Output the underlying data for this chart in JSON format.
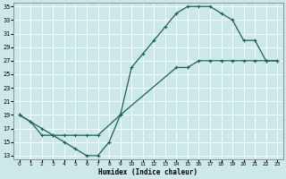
{
  "xlabel": "Humidex (Indice chaleur)",
  "bg_color": "#cce8e8",
  "grid_color": "#ffffff",
  "line_color": "#1a6060",
  "curve1_x": [
    0,
    1,
    2,
    3,
    4,
    5,
    6,
    7,
    8,
    9,
    10,
    11,
    12,
    13,
    14,
    15,
    16,
    17,
    18,
    19,
    20,
    21,
    22,
    23
  ],
  "curve1_y": [
    19,
    18,
    16,
    16,
    15,
    14,
    13,
    13,
    15,
    19,
    26,
    28,
    30,
    32,
    34,
    35,
    35,
    35,
    34,
    33,
    30,
    30,
    27,
    27
  ],
  "curve2_x": [
    0,
    2,
    3,
    4,
    5,
    6,
    7,
    9,
    14,
    15,
    16,
    17,
    18,
    19,
    20,
    21,
    22,
    23
  ],
  "curve2_y": [
    19,
    17,
    16,
    16,
    16,
    16,
    16,
    19,
    26,
    26,
    27,
    27,
    27,
    27,
    27,
    27,
    27,
    27
  ],
  "xmin": 0,
  "xmax": 23,
  "ymin": 13,
  "ymax": 35,
  "yticks": [
    13,
    15,
    17,
    19,
    21,
    23,
    25,
    27,
    29,
    31,
    33,
    35
  ],
  "xticks": [
    0,
    1,
    2,
    3,
    4,
    5,
    6,
    7,
    8,
    9,
    10,
    11,
    12,
    13,
    14,
    15,
    16,
    17,
    18,
    19,
    20,
    21,
    22,
    23
  ]
}
